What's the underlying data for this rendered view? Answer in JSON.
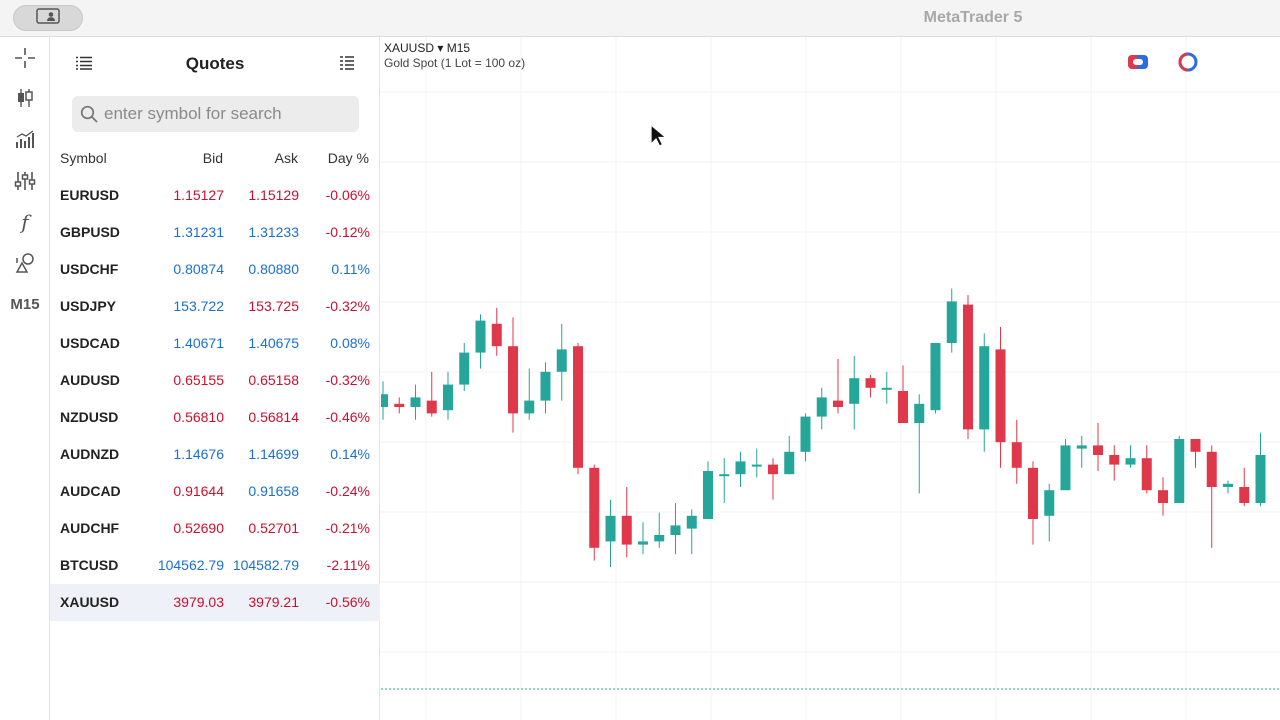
{
  "app": {
    "title": "MetaTrader 5"
  },
  "toolbar": {
    "timeframe": "M15",
    "formula_glyph": "f"
  },
  "quotes": {
    "title": "Quotes",
    "search_placeholder": "enter symbol for search",
    "columns": {
      "symbol": "Symbol",
      "bid": "Bid",
      "ask": "Ask",
      "day": "Day %"
    },
    "rows": [
      {
        "symbol": "EURUSD",
        "bid": "1.15127",
        "ask": "1.15129",
        "day": "-0.06%",
        "bid_color": "#c8102e",
        "ask_color": "#c8102e",
        "day_color": "#c8102e"
      },
      {
        "symbol": "GBPUSD",
        "bid": "1.31231",
        "ask": "1.31233",
        "day": "-0.12%",
        "bid_color": "#1a6fd0",
        "ask_color": "#1a6fd0",
        "day_color": "#c8102e"
      },
      {
        "symbol": "USDCHF",
        "bid": "0.80874",
        "ask": "0.80880",
        "day": "0.11%",
        "bid_color": "#1a6fd0",
        "ask_color": "#1a6fd0",
        "day_color": "#1a6fd0"
      },
      {
        "symbol": "USDJPY",
        "bid": "153.722",
        "ask": "153.725",
        "day": "-0.32%",
        "bid_color": "#1a6fd0",
        "ask_color": "#c8102e",
        "day_color": "#c8102e"
      },
      {
        "symbol": "USDCAD",
        "bid": "1.40671",
        "ask": "1.40675",
        "day": "0.08%",
        "bid_color": "#1a6fd0",
        "ask_color": "#1a6fd0",
        "day_color": "#1a6fd0"
      },
      {
        "symbol": "AUDUSD",
        "bid": "0.65155",
        "ask": "0.65158",
        "day": "-0.32%",
        "bid_color": "#c8102e",
        "ask_color": "#c8102e",
        "day_color": "#c8102e"
      },
      {
        "symbol": "NZDUSD",
        "bid": "0.56810",
        "ask": "0.56814",
        "day": "-0.46%",
        "bid_color": "#c8102e",
        "ask_color": "#c8102e",
        "day_color": "#c8102e"
      },
      {
        "symbol": "AUDNZD",
        "bid": "1.14676",
        "ask": "1.14699",
        "day": "0.14%",
        "bid_color": "#1a6fd0",
        "ask_color": "#1a6fd0",
        "day_color": "#1a6fd0"
      },
      {
        "symbol": "AUDCAD",
        "bid": "0.91644",
        "ask": "0.91658",
        "day": "-0.24%",
        "bid_color": "#c8102e",
        "ask_color": "#1a6fd0",
        "day_color": "#c8102e"
      },
      {
        "symbol": "AUDCHF",
        "bid": "0.52690",
        "ask": "0.52701",
        "day": "-0.21%",
        "bid_color": "#c8102e",
        "ask_color": "#c8102e",
        "day_color": "#c8102e"
      },
      {
        "symbol": "BTCUSD",
        "bid": "104562.79",
        "ask": "104582.79",
        "day": "-2.11%",
        "bid_color": "#1a6fd0",
        "ask_color": "#1a6fd0",
        "day_color": "#c8102e"
      },
      {
        "symbol": "XAUUSD",
        "bid": "3979.03",
        "ask": "3979.21",
        "day": "-0.56%",
        "bid_color": "#c8102e",
        "ask_color": "#c8102e",
        "day_color": "#c8102e",
        "selected": true
      }
    ]
  },
  "chart": {
    "symbol_label": "XAUUSD ▾ M15",
    "description": "Gold Spot (1 Lot = 100 oz)",
    "up_color": "#26a69a",
    "down_color": "#e0384b",
    "candles": [
      {
        "o": 0.5,
        "c": 0.54,
        "h": 0.58,
        "l": 0.46
      },
      {
        "o": 0.51,
        "c": 0.5,
        "h": 0.53,
        "l": 0.48
      },
      {
        "o": 0.5,
        "c": 0.53,
        "h": 0.57,
        "l": 0.46
      },
      {
        "o": 0.52,
        "c": 0.48,
        "h": 0.61,
        "l": 0.47
      },
      {
        "o": 0.49,
        "c": 0.57,
        "h": 0.61,
        "l": 0.46
      },
      {
        "o": 0.57,
        "c": 0.67,
        "h": 0.7,
        "l": 0.55
      },
      {
        "o": 0.67,
        "c": 0.77,
        "h": 0.79,
        "l": 0.62
      },
      {
        "o": 0.76,
        "c": 0.69,
        "h": 0.81,
        "l": 0.66
      },
      {
        "o": 0.69,
        "c": 0.48,
        "h": 0.78,
        "l": 0.42
      },
      {
        "o": 0.48,
        "c": 0.52,
        "h": 0.62,
        "l": 0.46
      },
      {
        "o": 0.52,
        "c": 0.61,
        "h": 0.64,
        "l": 0.48
      },
      {
        "o": 0.61,
        "c": 0.68,
        "h": 0.76,
        "l": 0.52
      },
      {
        "o": 0.69,
        "c": 0.31,
        "h": 0.7,
        "l": 0.29
      },
      {
        "o": 0.31,
        "c": 0.06,
        "h": 0.32,
        "l": 0.02
      },
      {
        "o": 0.08,
        "c": 0.16,
        "h": 0.21,
        "l": 0.0
      },
      {
        "o": 0.16,
        "c": 0.07,
        "h": 0.25,
        "l": 0.03
      },
      {
        "o": 0.07,
        "c": 0.08,
        "h": 0.14,
        "l": 0.04
      },
      {
        "o": 0.08,
        "c": 0.1,
        "h": 0.17,
        "l": 0.06
      },
      {
        "o": 0.1,
        "c": 0.13,
        "h": 0.2,
        "l": 0.04
      },
      {
        "o": 0.12,
        "c": 0.16,
        "h": 0.18,
        "l": 0.04
      },
      {
        "o": 0.15,
        "c": 0.3,
        "h": 0.33,
        "l": 0.15
      },
      {
        "o": 0.29,
        "c": 0.29,
        "h": 0.34,
        "l": 0.2
      },
      {
        "o": 0.29,
        "c": 0.33,
        "h": 0.36,
        "l": 0.25
      },
      {
        "o": 0.32,
        "c": 0.32,
        "h": 0.37,
        "l": 0.28
      },
      {
        "o": 0.32,
        "c": 0.29,
        "h": 0.34,
        "l": 0.21
      },
      {
        "o": 0.29,
        "c": 0.36,
        "h": 0.41,
        "l": 0.29
      },
      {
        "o": 0.36,
        "c": 0.47,
        "h": 0.48,
        "l": 0.33
      },
      {
        "o": 0.47,
        "c": 0.53,
        "h": 0.56,
        "l": 0.43
      },
      {
        "o": 0.52,
        "c": 0.5,
        "h": 0.65,
        "l": 0.48
      },
      {
        "o": 0.51,
        "c": 0.59,
        "h": 0.66,
        "l": 0.43
      },
      {
        "o": 0.59,
        "c": 0.56,
        "h": 0.6,
        "l": 0.53
      },
      {
        "o": 0.56,
        "c": 0.56,
        "h": 0.61,
        "l": 0.51
      },
      {
        "o": 0.55,
        "c": 0.45,
        "h": 0.63,
        "l": 0.45
      },
      {
        "o": 0.45,
        "c": 0.51,
        "h": 0.54,
        "l": 0.23
      },
      {
        "o": 0.49,
        "c": 0.7,
        "h": 0.7,
        "l": 0.48
      },
      {
        "o": 0.7,
        "c": 0.83,
        "h": 0.87,
        "l": 0.67
      },
      {
        "o": 0.82,
        "c": 0.43,
        "h": 0.85,
        "l": 0.4
      },
      {
        "o": 0.43,
        "c": 0.69,
        "h": 0.73,
        "l": 0.36
      },
      {
        "o": 0.68,
        "c": 0.39,
        "h": 0.75,
        "l": 0.31
      },
      {
        "o": 0.39,
        "c": 0.31,
        "h": 0.46,
        "l": 0.26
      },
      {
        "o": 0.31,
        "c": 0.15,
        "h": 0.33,
        "l": 0.07
      },
      {
        "o": 0.16,
        "c": 0.24,
        "h": 0.26,
        "l": 0.08
      },
      {
        "o": 0.24,
        "c": 0.38,
        "h": 0.4,
        "l": 0.24
      },
      {
        "o": 0.37,
        "c": 0.38,
        "h": 0.41,
        "l": 0.31
      },
      {
        "o": 0.38,
        "c": 0.35,
        "h": 0.45,
        "l": 0.3
      },
      {
        "o": 0.35,
        "c": 0.32,
        "h": 0.38,
        "l": 0.27
      },
      {
        "o": 0.32,
        "c": 0.34,
        "h": 0.38,
        "l": 0.31
      },
      {
        "o": 0.34,
        "c": 0.24,
        "h": 0.38,
        "l": 0.23
      },
      {
        "o": 0.24,
        "c": 0.2,
        "h": 0.28,
        "l": 0.16
      },
      {
        "o": 0.2,
        "c": 0.4,
        "h": 0.41,
        "l": 0.2
      },
      {
        "o": 0.4,
        "c": 0.36,
        "h": 0.4,
        "l": 0.31
      },
      {
        "o": 0.36,
        "c": 0.25,
        "h": 0.38,
        "l": 0.06
      },
      {
        "o": 0.25,
        "c": 0.26,
        "h": 0.27,
        "l": 0.23
      },
      {
        "o": 0.25,
        "c": 0.2,
        "h": 0.31,
        "l": 0.19
      },
      {
        "o": 0.2,
        "c": 0.35,
        "h": 0.42,
        "l": 0.19
      }
    ]
  }
}
